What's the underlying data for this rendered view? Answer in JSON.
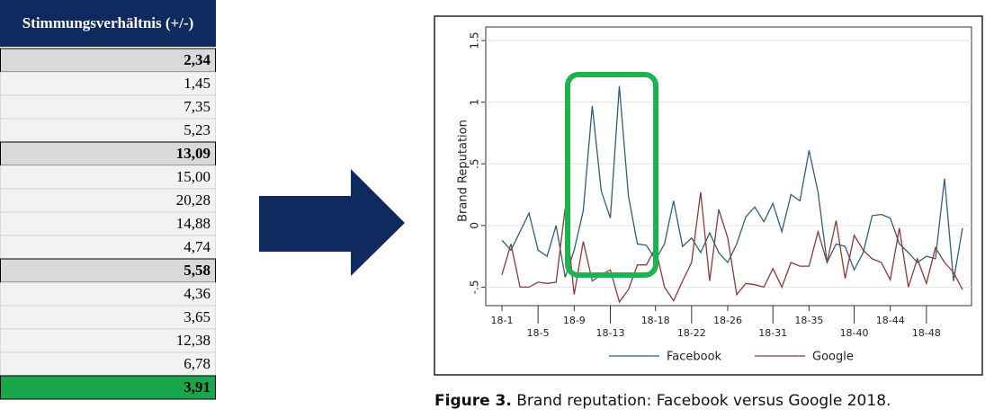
{
  "table": {
    "header": "Stimmungsverhältnis (+/-)",
    "groups": [
      {
        "total": "2,34",
        "items": [
          "1,45",
          "7,35",
          "5,23"
        ]
      },
      {
        "total": "13,09",
        "items": [
          "15,00",
          "20,28",
          "14,88",
          "4,74"
        ]
      },
      {
        "total": "5,58",
        "items": [
          "4,36",
          "3,65",
          "12,38",
          "6,78"
        ]
      }
    ],
    "overall": "3,91"
  },
  "chart_data": {
    "type": "line",
    "y_label": "Brand Reputation",
    "categories": [
      "18-1",
      null,
      null,
      null,
      "18-5",
      null,
      null,
      null,
      "18-9",
      null,
      null,
      null,
      "18-13",
      null,
      null,
      null,
      null,
      "18-18",
      null,
      null,
      null,
      "18-22",
      null,
      null,
      null,
      "18-26",
      null,
      null,
      null,
      null,
      "18-31",
      null,
      null,
      null,
      "18-35",
      null,
      null,
      null,
      null,
      "18-40",
      null,
      null,
      null,
      "18-44",
      null,
      null,
      null,
      "18-48",
      null,
      null,
      null,
      null
    ],
    "series": [
      {
        "name": "Facebook",
        "color": "#2e5f80",
        "values": [
          -0.12,
          -0.2,
          -0.05,
          0.1,
          -0.2,
          -0.25,
          0.0,
          -0.42,
          -0.2,
          0.12,
          0.97,
          0.28,
          0.06,
          1.13,
          0.24,
          -0.15,
          -0.16,
          -0.28,
          -0.15,
          0.2,
          -0.17,
          -0.1,
          -0.22,
          -0.06,
          -0.22,
          -0.3,
          -0.15,
          0.07,
          0.15,
          0.03,
          0.18,
          -0.05,
          0.25,
          0.2,
          0.61,
          0.27,
          -0.3,
          -0.15,
          -0.17,
          -0.36,
          -0.22,
          0.08,
          0.09,
          0.06,
          -0.15,
          -0.22,
          -0.3,
          -0.25,
          -0.27,
          0.38,
          -0.45,
          -0.02
        ]
      },
      {
        "name": "Google",
        "color": "#8b3a3a",
        "values": [
          -0.4,
          -0.15,
          -0.5,
          -0.5,
          -0.46,
          -0.47,
          -0.46,
          0.14,
          -0.56,
          -0.13,
          -0.45,
          -0.4,
          -0.36,
          -0.62,
          -0.52,
          -0.32,
          -0.32,
          -0.18,
          -0.5,
          -0.61,
          -0.45,
          -0.3,
          0.27,
          -0.45,
          0.13,
          -0.1,
          -0.56,
          -0.47,
          -0.48,
          -0.5,
          -0.35,
          -0.5,
          -0.3,
          -0.33,
          -0.33,
          -0.05,
          -0.3,
          0.04,
          -0.43,
          -0.08,
          -0.2,
          -0.27,
          -0.3,
          -0.44,
          -0.02,
          -0.5,
          -0.27,
          -0.47,
          -0.18,
          -0.3,
          -0.38,
          -0.52
        ]
      }
    ],
    "ylim": [
      -0.65,
      1.61
    ],
    "yticks": [
      {
        "value": -0.5,
        "label": "-.5"
      },
      0,
      {
        "value": 0.5,
        "label": ".5"
      },
      1,
      1.5
    ],
    "grid": true
  },
  "caption": {
    "label": "Figure 3.",
    "text": "Brand reputation: Facebook versus Google 2018."
  }
}
